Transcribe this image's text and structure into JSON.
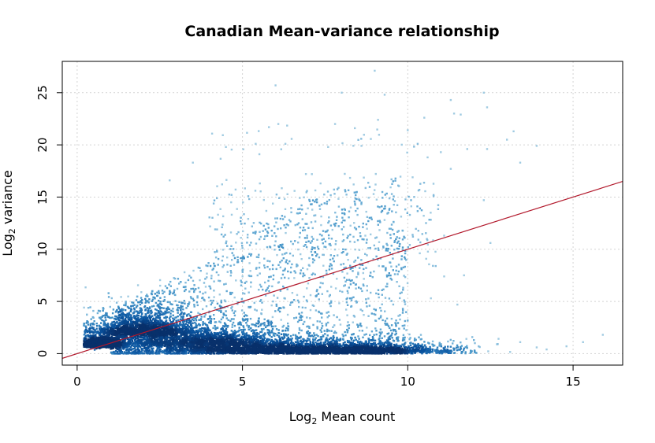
{
  "chart_data": {
    "type": "scatter",
    "title": "Canadian Mean-variance relationship",
    "xlabel": {
      "prefix": "Log",
      "sub": "2",
      "suffix": " Mean count"
    },
    "ylabel": {
      "prefix": "Log",
      "sub": "2",
      "suffix": " variance"
    },
    "xlim": [
      -0.45,
      16.5
    ],
    "ylim": [
      -1.1,
      28.0
    ],
    "x_ticks": [
      0,
      5,
      10,
      15
    ],
    "y_ticks": [
      0,
      5,
      10,
      15,
      20,
      25
    ],
    "grid": true,
    "legend": "none",
    "colors": {
      "light": "#9ecae1",
      "medium": "#4292c6",
      "dark": "#08519c",
      "darkest": "#08306b",
      "trend": "#b2182b"
    },
    "trend_line": {
      "slope": 1.0,
      "intercept": 0.0
    },
    "density_clusters": [
      {
        "x": 0.7,
        "y": 0.9,
        "sx": 0.3,
        "sy": 0.35,
        "weight": 0.22
      },
      {
        "x": 2.0,
        "y": 2.2,
        "sx": 0.8,
        "sy": 1.3,
        "weight": 0.22
      },
      {
        "x": 4.0,
        "y": 1.1,
        "sx": 1.2,
        "sy": 0.9,
        "weight": 0.18
      },
      {
        "x": 6.0,
        "y": 0.35,
        "sx": 1.4,
        "sy": 0.3,
        "weight": 0.22
      },
      {
        "x": 8.8,
        "y": 0.3,
        "sx": 1.3,
        "sy": 0.3,
        "weight": 0.16
      }
    ],
    "outliers": [
      [
        9.0,
        27.1
      ],
      [
        6.0,
        25.7
      ],
      [
        8.0,
        25.0
      ],
      [
        9.3,
        24.8
      ],
      [
        12.3,
        25.0
      ],
      [
        11.3,
        24.3
      ],
      [
        11.4,
        23.0
      ],
      [
        12.4,
        23.6
      ],
      [
        10.0,
        21.4
      ],
      [
        10.5,
        22.6
      ],
      [
        9.1,
        22.4
      ],
      [
        11.6,
        22.9
      ],
      [
        5.8,
        21.7
      ],
      [
        7.8,
        22.0
      ],
      [
        8.4,
        21.6
      ],
      [
        10.3,
        20.1
      ],
      [
        13.2,
        21.3
      ],
      [
        13.0,
        20.5
      ],
      [
        12.4,
        19.6
      ],
      [
        13.9,
        19.9
      ],
      [
        11.0,
        19.3
      ],
      [
        11.8,
        19.6
      ],
      [
        4.5,
        19.8
      ],
      [
        5.4,
        20.1
      ],
      [
        6.3,
        20.1
      ],
      [
        8.6,
        19.9
      ],
      [
        10.6,
        18.8
      ],
      [
        13.4,
        18.3
      ],
      [
        11.3,
        17.7
      ],
      [
        3.5,
        18.3
      ],
      [
        7.1,
        17.2
      ],
      [
        2.8,
        16.6
      ],
      [
        10.1,
        14.7
      ],
      [
        12.3,
        14.7
      ],
      [
        11.1,
        11.3
      ],
      [
        12.5,
        10.6
      ],
      [
        11.1,
        7.4
      ],
      [
        11.7,
        7.5
      ],
      [
        10.7,
        5.3
      ],
      [
        11.5,
        4.7
      ],
      [
        13.9,
        0.6
      ],
      [
        15.3,
        1.1
      ],
      [
        15.9,
        1.8
      ],
      [
        14.8,
        0.7
      ],
      [
        12.7,
        0.9
      ],
      [
        13.4,
        1.1
      ],
      [
        14.2,
        0.4
      ],
      [
        12.0,
        1.3
      ]
    ]
  }
}
